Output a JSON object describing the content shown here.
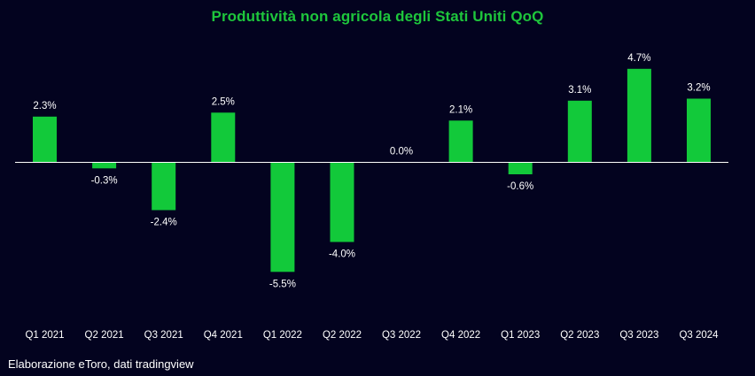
{
  "chart_data": {
    "type": "bar",
    "title": "Produttività non agricola degli Stati Uniti QoQ",
    "categories": [
      "Q1 2021",
      "Q2 2021",
      "Q3 2021",
      "Q4 2021",
      "Q1 2022",
      "Q2 2022",
      "Q3 2022",
      "Q4 2022",
      "Q1 2023",
      "Q2 2023",
      "Q3 2023",
      "Q3 2024"
    ],
    "values": [
      2.3,
      -0.3,
      -2.4,
      2.5,
      -5.5,
      -4.0,
      0.0,
      2.1,
      -0.6,
      3.1,
      4.7,
      3.2
    ],
    "data_labels": [
      "2.3%",
      "-0.3%",
      "-2.4%",
      "2.5%",
      "-5.5%",
      "-4.0%",
      "0.0%",
      "2.1%",
      "-0.6%",
      "3.1%",
      "4.7%",
      "3.2%"
    ],
    "ylim": [
      -8,
      6
    ],
    "grid": false,
    "legend": "none",
    "xlabel": "",
    "ylabel": "",
    "bar_color": "#12c93a",
    "axis_color": "#ffffff",
    "label_color": "#ffffff",
    "title_color": "#1ec63c",
    "background_color": "#03031f"
  },
  "footer": {
    "source": "Elaborazione eToro, dati tradingview"
  }
}
